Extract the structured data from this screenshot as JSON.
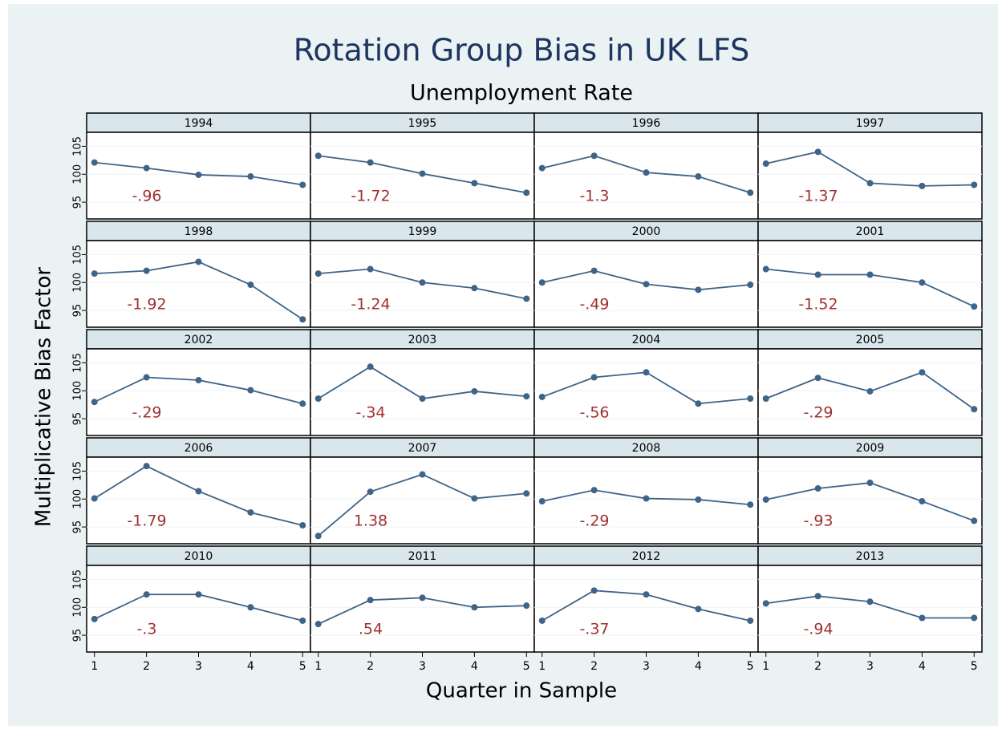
{
  "chart_data": {
    "type": "line",
    "title": "Rotation Group Bias in UK LFS",
    "subtitle": "Unemployment Rate",
    "xlabel": "Quarter in Sample",
    "ylabel": "Multiplicative Bias Factor",
    "x": [
      1,
      2,
      3,
      4,
      5
    ],
    "xlim": [
      0.85,
      5.15
    ],
    "xticks": [
      1,
      2,
      3,
      4,
      5
    ],
    "ylim": [
      92,
      107.5
    ],
    "yticks": [
      95,
      100,
      105
    ],
    "grid": true,
    "color": "#3e6487",
    "annotation_color": "#a0302f",
    "panels": [
      {
        "title": "1994",
        "values": [
          102.1,
          101.1,
          99.9,
          99.6,
          98.1
        ],
        "annotation": "-.96"
      },
      {
        "title": "1995",
        "values": [
          103.3,
          102.1,
          100.1,
          98.4,
          96.7
        ],
        "annotation": "-1.72"
      },
      {
        "title": "1996",
        "values": [
          101.1,
          103.3,
          100.3,
          99.6,
          96.7
        ],
        "annotation": "-1.3"
      },
      {
        "title": "1997",
        "values": [
          101.9,
          104.0,
          98.4,
          97.9,
          98.1
        ],
        "annotation": "-1.37"
      },
      {
        "title": "1998",
        "values": [
          101.6,
          102.1,
          103.7,
          99.6,
          93.4
        ],
        "annotation": "-1.92"
      },
      {
        "title": "1999",
        "values": [
          101.6,
          102.4,
          100.0,
          99.0,
          97.1
        ],
        "annotation": "-1.24"
      },
      {
        "title": "2000",
        "values": [
          100.0,
          102.1,
          99.7,
          98.7,
          99.6
        ],
        "annotation": "-.49"
      },
      {
        "title": "2001",
        "values": [
          102.4,
          101.4,
          101.4,
          100.0,
          95.7
        ],
        "annotation": "-1.52"
      },
      {
        "title": "2002",
        "values": [
          98.0,
          102.4,
          101.9,
          100.1,
          97.7
        ],
        "annotation": "-.29"
      },
      {
        "title": "2003",
        "values": [
          98.6,
          104.3,
          98.6,
          99.9,
          99.0
        ],
        "annotation": "-.34"
      },
      {
        "title": "2004",
        "values": [
          98.9,
          102.4,
          103.3,
          97.7,
          98.6
        ],
        "annotation": "-.56"
      },
      {
        "title": "2005",
        "values": [
          98.6,
          102.3,
          99.9,
          103.3,
          96.7
        ],
        "annotation": "-.29"
      },
      {
        "title": "2006",
        "values": [
          100.1,
          105.9,
          101.4,
          97.6,
          95.3
        ],
        "annotation": "-1.79"
      },
      {
        "title": "2007",
        "values": [
          93.4,
          101.3,
          104.4,
          100.1,
          101.0
        ],
        "annotation": "1.38"
      },
      {
        "title": "2008",
        "values": [
          99.6,
          101.6,
          100.1,
          99.9,
          99.0
        ],
        "annotation": "-.29"
      },
      {
        "title": "2009",
        "values": [
          99.9,
          101.9,
          102.9,
          99.6,
          96.1
        ],
        "annotation": "-.93"
      },
      {
        "title": "2010",
        "values": [
          97.9,
          102.3,
          102.3,
          100.0,
          97.6
        ],
        "annotation": "-.3"
      },
      {
        "title": "2011",
        "values": [
          97.0,
          101.3,
          101.7,
          100.0,
          100.3
        ],
        "annotation": ".54"
      },
      {
        "title": "2012",
        "values": [
          97.6,
          103.0,
          102.3,
          99.7,
          97.6
        ],
        "annotation": "-.37"
      },
      {
        "title": "2013",
        "values": [
          100.7,
          102.0,
          101.0,
          98.1,
          98.1
        ],
        "annotation": "-.94"
      }
    ]
  }
}
